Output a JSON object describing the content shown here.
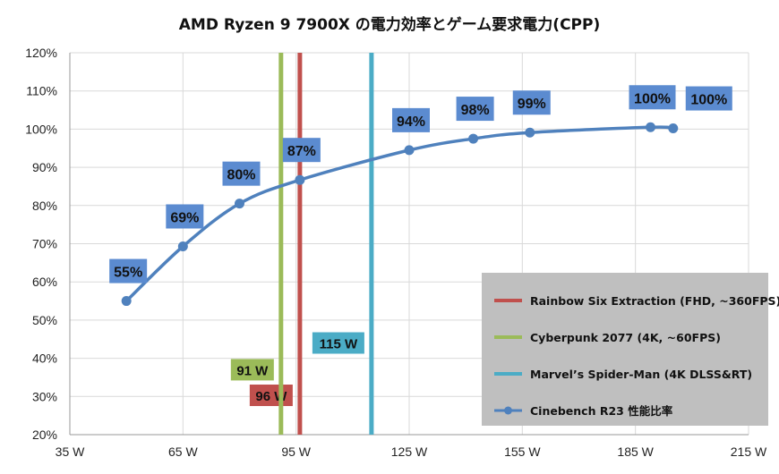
{
  "chart_data": {
    "type": "line",
    "title": "AMD Ryzen 9 7900X の電力効率とゲーム要求電力(CPP)",
    "x_ticks": [
      "35 W",
      "65 W",
      "95 W",
      "125 W",
      "155 W",
      "185 W",
      "215 W"
    ],
    "xlim": [
      35,
      215
    ],
    "y_ticks": [
      "120%",
      "110%",
      "100%",
      "90%",
      "80%",
      "70%",
      "60%",
      "50%",
      "40%",
      "30%",
      "20%"
    ],
    "ylim": [
      20,
      120
    ],
    "grid": true,
    "series": [
      {
        "name": "Cinebench R23 性能比率",
        "color": "#4F81BD",
        "points": [
          {
            "x": 50,
            "y": 55,
            "label": "55%"
          },
          {
            "x": 65,
            "y": 69.3,
            "label": "69%"
          },
          {
            "x": 80,
            "y": 80.5,
            "label": "80%"
          },
          {
            "x": 96,
            "y": 86.7,
            "label": "87%"
          },
          {
            "x": 125,
            "y": 94.5,
            "label": "94%"
          },
          {
            "x": 142,
            "y": 97.5,
            "label": "98%"
          },
          {
            "x": 157,
            "y": 99.1,
            "label": "99%"
          },
          {
            "x": 189,
            "y": 100.5,
            "label": "100%"
          },
          {
            "x": 195,
            "y": 100.2,
            "label": "100%"
          }
        ]
      }
    ],
    "vertical_lines": [
      {
        "name": "Rainbow Six Extraction (FHD, ~360FPS)",
        "x": 96,
        "label": "96 W",
        "color": "#C0504D",
        "label_y": 30.3
      },
      {
        "name": "Cyberpunk 2077 (4K, ~60FPS)",
        "x": 91,
        "label": "91 W",
        "color": "#9BBB59",
        "label_y": 37
      },
      {
        "name": "Marvel’s Spider-Man (4K DLSS&RT)",
        "x": 115,
        "label": "115 W",
        "color": "#4BACC6",
        "label_y": 44
      }
    ],
    "legend_position": "bottom-right"
  }
}
